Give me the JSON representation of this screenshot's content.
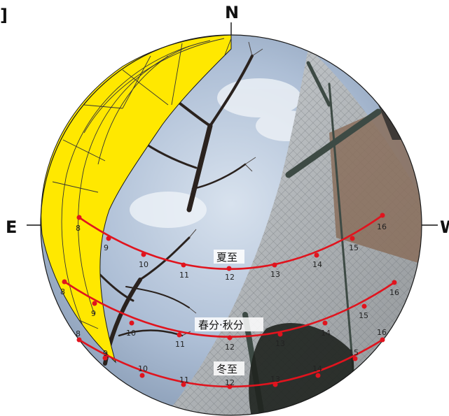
{
  "corner_mark": "]",
  "compass": {
    "north": "N",
    "east": "E",
    "west": "W"
  },
  "colors": {
    "path_line": "#e0141e",
    "obstruction_fill": "#ffe800",
    "sky": "#aebfd6",
    "outline": "#1a1a1a"
  },
  "sun_paths": [
    {
      "label": "夏至",
      "hours": [
        {
          "h": "8"
        },
        {
          "h": "9"
        },
        {
          "h": "10"
        },
        {
          "h": "11"
        },
        {
          "h": "12"
        },
        {
          "h": "13"
        },
        {
          "h": "14"
        },
        {
          "h": "15"
        },
        {
          "h": "16"
        }
      ]
    },
    {
      "label": "春分·秋分",
      "hours": [
        {
          "h": "8"
        },
        {
          "h": "9"
        },
        {
          "h": "10"
        },
        {
          "h": "11"
        },
        {
          "h": "12"
        },
        {
          "h": "13"
        },
        {
          "h": "14"
        },
        {
          "h": "15"
        },
        {
          "h": "16"
        }
      ]
    },
    {
      "label": "冬至",
      "hours": [
        {
          "h": "8"
        },
        {
          "h": "9"
        },
        {
          "h": "10"
        },
        {
          "h": "11"
        },
        {
          "h": "12"
        },
        {
          "h": "13"
        },
        {
          "h": "14"
        },
        {
          "h": "15"
        },
        {
          "h": "16"
        }
      ]
    }
  ]
}
